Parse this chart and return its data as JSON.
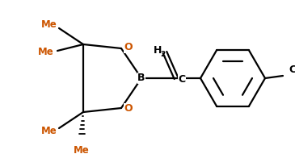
{
  "bg_color": "#ffffff",
  "line_color": "#000000",
  "orange_color": "#cc5500",
  "figsize": [
    3.65,
    1.91
  ],
  "dpi": 100,
  "labels": {
    "B": "B",
    "O_top": "O",
    "O_bot": "O",
    "C_vinyl": "C",
    "H2_H": "H",
    "H2_2": "2",
    "Cl": "Cl",
    "Me1": "Me",
    "Me2": "Me",
    "Me3": "Me",
    "Me4": "Me"
  }
}
